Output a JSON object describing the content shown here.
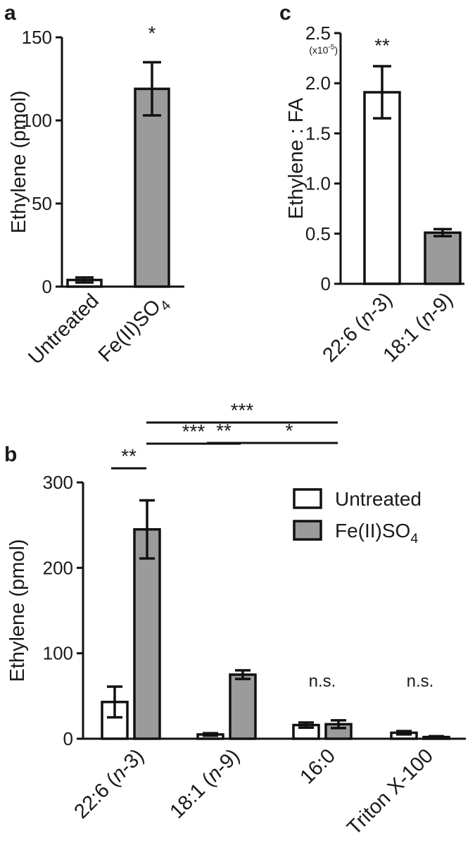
{
  "panels": {
    "a": {
      "letter": "a"
    },
    "b": {
      "letter": "b"
    },
    "c": {
      "letter": "c"
    }
  },
  "chart_data": [
    {
      "panel": "a",
      "type": "bar",
      "categories": [
        "Untreated",
        "Fe(II)SO4"
      ],
      "category_display": [
        [
          "Untreated",
          ""
        ],
        [
          "Fe(II)SO",
          "4"
        ]
      ],
      "values": [
        4,
        119
      ],
      "errors": [
        1.5,
        16
      ],
      "fills": [
        "#ffffff",
        "#9b9b9b"
      ],
      "ylabel": "Ethylene (pmol)",
      "ylim": [
        0,
        150
      ],
      "yticks": [
        0,
        50,
        100,
        150
      ],
      "ytick_labels": [
        "0",
        "50",
        "100",
        "150"
      ],
      "significance": [
        "",
        "*"
      ]
    },
    {
      "panel": "b",
      "type": "bar",
      "categories": [
        "22:6 (n-3)",
        "18:1 (n-9)",
        "16:0",
        "Triton X-100"
      ],
      "category_display": [
        [
          [
            "22:6 (",
            false
          ],
          [
            "n",
            true
          ],
          [
            "-3)",
            false
          ]
        ],
        [
          [
            "18:1 (",
            false
          ],
          [
            "n",
            true
          ],
          [
            "-9)",
            false
          ]
        ],
        [
          [
            "16:0",
            false
          ]
        ],
        [
          [
            "Triton X-100",
            false
          ]
        ]
      ],
      "series": [
        {
          "name": "Untreated",
          "fill": "#ffffff",
          "values": [
            43,
            5,
            16,
            7
          ],
          "errors": [
            18,
            1.5,
            3,
            2
          ]
        },
        {
          "name": "Fe(II)SO4",
          "name_display": [
            "Fe(II)SO",
            "4"
          ],
          "fill": "#9b9b9b",
          "values": [
            245,
            75,
            17,
            2
          ],
          "errors": [
            34,
            5,
            4.5,
            1
          ]
        }
      ],
      "ylabel": "Ethylene (pmol)",
      "ylim": [
        0,
        300
      ],
      "yticks": [
        0,
        100,
        200,
        300
      ],
      "ytick_labels": [
        "0",
        "100",
        "200",
        "300"
      ],
      "legend_position": "top-right",
      "significance_brackets": [
        {
          "label": "**",
          "from": "22:6 (n-3) Untreated",
          "to": "22:6 (n-3) Fe(II)SO4"
        },
        {
          "label": "***",
          "from": "22:6 (n-3) Fe(II)SO4",
          "to": "18:1 (n-9) Fe(II)SO4"
        },
        {
          "label": "***",
          "from": "22:6 (n-3) Fe(II)SO4",
          "to": "16:0 Fe(II)SO4"
        },
        {
          "label": "**",
          "from": "18:1 (n-9) Untreated",
          "to": "18:1 (n-9) Fe(II)SO4"
        },
        {
          "label": "*",
          "from": "18:1 (n-9) Fe(II)SO4",
          "to": "16:0 Fe(II)SO4"
        }
      ],
      "group_labels": [
        {
          "category": "16:0",
          "label": "n.s."
        },
        {
          "category": "Triton X-100",
          "label": "n.s."
        }
      ]
    },
    {
      "panel": "c",
      "type": "bar",
      "categories": [
        "22:6 (n-3)",
        "18:1 (n-9)"
      ],
      "category_display": [
        [
          [
            "22:6 (",
            false
          ],
          [
            "n",
            true
          ],
          [
            "-3)",
            false
          ]
        ],
        [
          [
            "18:1 (",
            false
          ],
          [
            "n",
            true
          ],
          [
            "-9)",
            false
          ]
        ]
      ],
      "values": [
        1.91,
        0.51
      ],
      "errors": [
        0.26,
        0.035
      ],
      "fills": [
        "#ffffff",
        "#9b9b9b"
      ],
      "ylabel": "Ethylene : FA",
      "ylim": [
        0,
        2.5
      ],
      "yticks": [
        0,
        0.5,
        1.0,
        1.5,
        2.0,
        2.5
      ],
      "ytick_labels": [
        "0",
        "0.5",
        "1.0",
        "1.5",
        "2.0",
        "2.5"
      ],
      "scale_note": [
        "(x10",
        "-5",
        ")"
      ],
      "significance": [
        "**",
        ""
      ]
    }
  ]
}
